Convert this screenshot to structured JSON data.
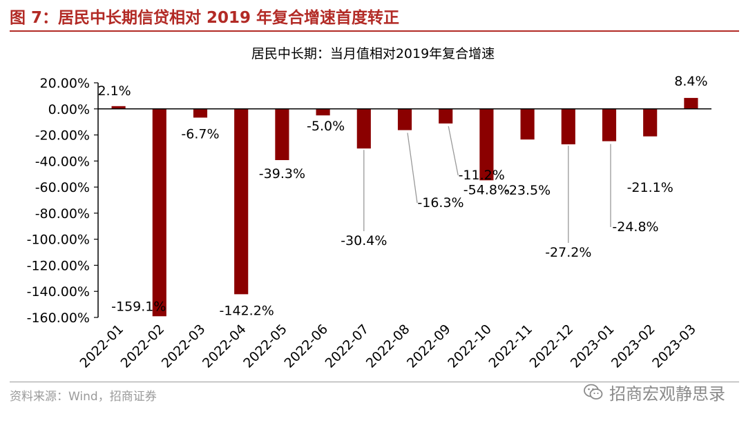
{
  "figure": {
    "title": "图 7：居民中长期信贷相对 2019 年复合增速首度转正",
    "source": "资料来源：Wind，招商证券",
    "watermark": "招商宏观静思录",
    "watermark_icon": "wechat-icon"
  },
  "colors": {
    "bar": "#8b0000",
    "title": "#b22a25",
    "axis": "#000000",
    "leader": "#999999"
  },
  "chart_data": {
    "type": "bar",
    "title": "居民中长期：当月值相对2019年复合增速",
    "categories": [
      "2022-01",
      "2022-02",
      "2022-03",
      "2022-04",
      "2022-05",
      "2022-06",
      "2022-07",
      "2022-08",
      "2022-09",
      "2022-10",
      "2022-11",
      "2022-12",
      "2023-01",
      "2023-02",
      "2023-03"
    ],
    "values": [
      2.1,
      -159.1,
      -6.7,
      -142.2,
      -39.3,
      -5.0,
      -30.4,
      -16.3,
      -11.2,
      -54.8,
      -23.5,
      -27.2,
      -24.8,
      -21.1,
      8.4
    ],
    "data_labels": [
      "2.1%",
      "-159.1%",
      "-6.7%",
      "-142.2%",
      "-39.3%",
      "-5.0%",
      "-30.4%",
      "-16.3%",
      "-11.2%",
      "-54.8%",
      "-23.5%",
      "-27.2%",
      "-24.8%",
      "-21.1%",
      "8.4%"
    ],
    "ylim": [
      -160,
      20
    ],
    "yticks": [
      20,
      0,
      -20,
      -40,
      -60,
      -80,
      -100,
      -120,
      -140,
      -160
    ],
    "ytick_labels": [
      "20.00%",
      "0.00%",
      "-20.00%",
      "-40.00%",
      "-60.00%",
      "-80.00%",
      "-100.00%",
      "-120.00%",
      "-140.00%",
      "-160.00%"
    ],
    "xlabel": "",
    "ylabel": "",
    "grid": false,
    "legend": false
  }
}
